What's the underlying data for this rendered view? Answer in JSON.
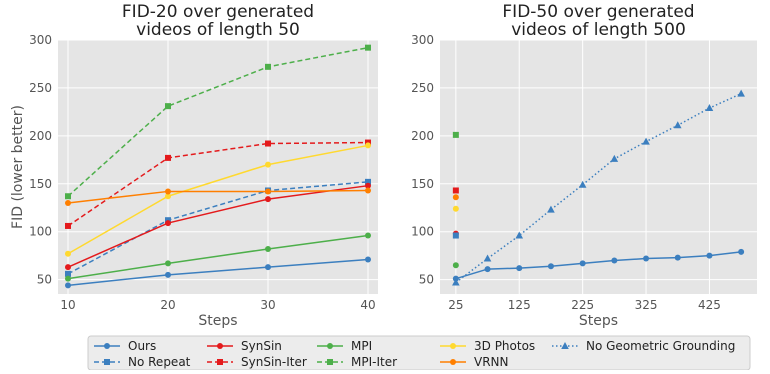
{
  "colors": {
    "plot_bg": "#e5e5e5",
    "grid": "#ffffff",
    "ours": "#3c7fbf",
    "synsin": "#e41a1c",
    "mpi": "#4daf4a",
    "photos3d": "#ffd92f",
    "vrnn": "#ff7f00"
  },
  "chart_data": [
    {
      "type": "line",
      "title_lines": [
        "FID-20 over generated",
        "videos of length 50"
      ],
      "xlabel": "Steps",
      "ylabel": "FID (lower better)",
      "xlim": [
        9,
        41
      ],
      "ylim": [
        35,
        300
      ],
      "xticks": [
        10,
        20,
        30,
        40
      ],
      "yticks": [
        50,
        100,
        150,
        200,
        250,
        300
      ],
      "grid": true,
      "series": [
        {
          "name": "Ours",
          "color": "#3c7fbf",
          "dash": "solid",
          "marker": "circle",
          "x": [
            10,
            20,
            30,
            40
          ],
          "y": [
            44,
            55,
            63,
            71
          ]
        },
        {
          "name": "No Repeat",
          "color": "#3c7fbf",
          "dash": "dashed",
          "marker": "square",
          "x": [
            10,
            20,
            30,
            40
          ],
          "y": [
            56,
            112,
            143,
            152
          ]
        },
        {
          "name": "SynSin",
          "color": "#e41a1c",
          "dash": "solid",
          "marker": "circle",
          "x": [
            10,
            20,
            30,
            40
          ],
          "y": [
            63,
            109,
            134,
            148
          ]
        },
        {
          "name": "SynSin-Iter",
          "color": "#e41a1c",
          "dash": "dashed",
          "marker": "square",
          "x": [
            10,
            20,
            30,
            40
          ],
          "y": [
            106,
            177,
            192,
            193
          ]
        },
        {
          "name": "MPI",
          "color": "#4daf4a",
          "dash": "solid",
          "marker": "circle",
          "x": [
            10,
            20,
            30,
            40
          ],
          "y": [
            51,
            67,
            82,
            96
          ]
        },
        {
          "name": "MPI-Iter",
          "color": "#4daf4a",
          "dash": "dashed",
          "marker": "square",
          "x": [
            10,
            20,
            30,
            40
          ],
          "y": [
            137,
            231,
            272,
            292
          ]
        },
        {
          "name": "3D Photos",
          "color": "#ffd92f",
          "dash": "solid",
          "marker": "circle",
          "x": [
            10,
            20,
            30,
            40
          ],
          "y": [
            77,
            137,
            170,
            190
          ]
        },
        {
          "name": "VRNN",
          "color": "#ff7f00",
          "dash": "solid",
          "marker": "circle",
          "x": [
            10,
            20,
            30,
            40
          ],
          "y": [
            130,
            142,
            142,
            143
          ]
        }
      ]
    },
    {
      "type": "line",
      "title_lines": [
        "FID-50 over generated",
        "videos of length 500"
      ],
      "xlabel": "Steps",
      "ylabel": "",
      "xlim": [
        0,
        500
      ],
      "ylim": [
        35,
        300
      ],
      "xticks": [
        25,
        125,
        225,
        325,
        425
      ],
      "yticks": [
        50,
        100,
        150,
        200,
        250,
        300
      ],
      "grid": true,
      "series": [
        {
          "name": "Ours",
          "color": "#3c7fbf",
          "dash": "solid",
          "marker": "circle",
          "x": [
            25,
            75,
            125,
            175,
            225,
            275,
            325,
            375,
            425,
            475
          ],
          "y": [
            51,
            61,
            62,
            64,
            67,
            70,
            72,
            73,
            75,
            79
          ]
        },
        {
          "name": "No Geometric Grounding",
          "color": "#3c7fbf",
          "dash": "dotted",
          "marker": "triangle",
          "x": [
            25,
            75,
            125,
            175,
            225,
            275,
            325,
            375,
            425,
            475
          ],
          "y": [
            47,
            72,
            96,
            123,
            149,
            176,
            194,
            211,
            229,
            244
          ]
        },
        {
          "name": "MPI-Iter",
          "color": "#4daf4a",
          "dash": "none",
          "marker": "square",
          "x": [
            25
          ],
          "y": [
            201
          ]
        },
        {
          "name": "SynSin-Iter",
          "color": "#e41a1c",
          "dash": "none",
          "marker": "square",
          "x": [
            25
          ],
          "y": [
            143
          ]
        },
        {
          "name": "VRNN",
          "color": "#ff7f00",
          "dash": "none",
          "marker": "circle",
          "x": [
            25
          ],
          "y": [
            136
          ]
        },
        {
          "name": "3D Photos",
          "color": "#ffd92f",
          "dash": "none",
          "marker": "circle",
          "x": [
            25
          ],
          "y": [
            124
          ]
        },
        {
          "name": "SynSin",
          "color": "#e41a1c",
          "dash": "none",
          "marker": "circle",
          "x": [
            25
          ],
          "y": [
            98
          ]
        },
        {
          "name": "No Repeat",
          "color": "#3c7fbf",
          "dash": "none",
          "marker": "square",
          "x": [
            25
          ],
          "y": [
            96
          ]
        },
        {
          "name": "MPI",
          "color": "#4daf4a",
          "dash": "none",
          "marker": "circle",
          "x": [
            25
          ],
          "y": [
            65
          ]
        }
      ]
    }
  ],
  "legend": {
    "placement": "bottom",
    "columns": [
      [
        {
          "label": "Ours",
          "color": "#3c7fbf",
          "dash": "solid",
          "marker": "circle"
        },
        {
          "label": "No Repeat",
          "color": "#3c7fbf",
          "dash": "dashed",
          "marker": "square"
        }
      ],
      [
        {
          "label": "SynSin",
          "color": "#e41a1c",
          "dash": "solid",
          "marker": "circle"
        },
        {
          "label": "SynSin-Iter",
          "color": "#e41a1c",
          "dash": "dashed",
          "marker": "square"
        }
      ],
      [
        {
          "label": "MPI",
          "color": "#4daf4a",
          "dash": "solid",
          "marker": "circle"
        },
        {
          "label": "MPI-Iter",
          "color": "#4daf4a",
          "dash": "dashed",
          "marker": "square"
        }
      ],
      [
        {
          "label": "3D Photos",
          "color": "#ffd92f",
          "dash": "solid",
          "marker": "circle"
        },
        {
          "label": "VRNN",
          "color": "#ff7f00",
          "dash": "solid",
          "marker": "circle"
        }
      ],
      [
        {
          "label": "No Geometric Grounding",
          "color": "#3c7fbf",
          "dash": "dotted",
          "marker": "triangle"
        }
      ]
    ]
  }
}
